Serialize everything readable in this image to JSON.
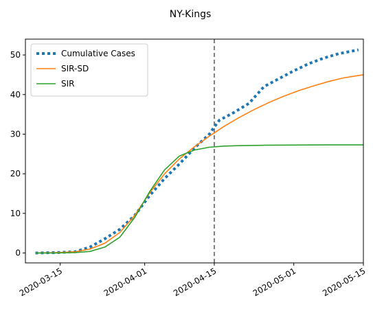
{
  "chart_data": {
    "type": "line",
    "title": "NY-Kings",
    "xlabel": "",
    "ylabel": "",
    "x_ticks": [
      "2020-03-15",
      "2020-04-01",
      "2020-04-15",
      "2020-05-01",
      "2020-05-15"
    ],
    "y_ticks": [
      0,
      10,
      20,
      30,
      40,
      50
    ],
    "ylim": [
      -2.5,
      54
    ],
    "xlim": [
      "2020-03-08",
      "2020-05-15"
    ],
    "vline": {
      "x": "2020-04-15",
      "style": "dashed",
      "color": "#7f7f7f"
    },
    "legend": {
      "placement": "top-left"
    },
    "grid": false,
    "series": [
      {
        "name": "Cumulative Cases",
        "color": "#1f77b4",
        "style": "dotted",
        "x": [
          "2020-03-10",
          "2020-03-14",
          "2020-03-18",
          "2020-03-21",
          "2020-03-24",
          "2020-03-27",
          "2020-03-30",
          "2020-04-02",
          "2020-04-05",
          "2020-04-08",
          "2020-04-11",
          "2020-04-14",
          "2020-04-15",
          "2020-04-16",
          "2020-04-19",
          "2020-04-22",
          "2020-04-25",
          "2020-04-28",
          "2020-05-01",
          "2020-05-04",
          "2020-05-07",
          "2020-05-10",
          "2020-05-14"
        ],
        "values": [
          0.0,
          0.1,
          0.3,
          1.5,
          3.6,
          6.0,
          9.5,
          14.5,
          18.8,
          22.5,
          26.5,
          30.0,
          31.8,
          33.5,
          35.5,
          37.8,
          42.0,
          44.0,
          46.0,
          47.8,
          49.2,
          50.3,
          51.3
        ]
      },
      {
        "name": "SIR-SD",
        "color": "#ff7f0e",
        "style": "solid",
        "x": [
          "2020-03-10",
          "2020-03-14",
          "2020-03-18",
          "2020-03-21",
          "2020-03-24",
          "2020-03-27",
          "2020-03-30",
          "2020-04-02",
          "2020-04-05",
          "2020-04-08",
          "2020-04-11",
          "2020-04-14",
          "2020-04-17",
          "2020-04-20",
          "2020-04-23",
          "2020-04-26",
          "2020-04-29",
          "2020-05-02",
          "2020-05-05",
          "2020-05-08",
          "2020-05-11",
          "2020-05-15"
        ],
        "values": [
          0.0,
          0.1,
          0.3,
          1.0,
          2.5,
          5.2,
          9.5,
          15.2,
          20.0,
          23.8,
          26.8,
          29.5,
          32.0,
          34.2,
          36.2,
          38.0,
          39.6,
          41.0,
          42.2,
          43.3,
          44.2,
          45.0
        ]
      },
      {
        "name": "SIR",
        "color": "#2ca02c",
        "style": "solid",
        "x": [
          "2020-03-10",
          "2020-03-14",
          "2020-03-18",
          "2020-03-21",
          "2020-03-24",
          "2020-03-27",
          "2020-03-30",
          "2020-04-02",
          "2020-04-05",
          "2020-04-08",
          "2020-04-11",
          "2020-04-14",
          "2020-04-17",
          "2020-04-20",
          "2020-04-25",
          "2020-05-01",
          "2020-05-08",
          "2020-05-15"
        ],
        "values": [
          0.0,
          0.0,
          0.1,
          0.4,
          1.5,
          4.0,
          9.0,
          15.5,
          21.0,
          24.5,
          26.0,
          26.7,
          27.0,
          27.1,
          27.2,
          27.25,
          27.3,
          27.3
        ]
      }
    ]
  }
}
